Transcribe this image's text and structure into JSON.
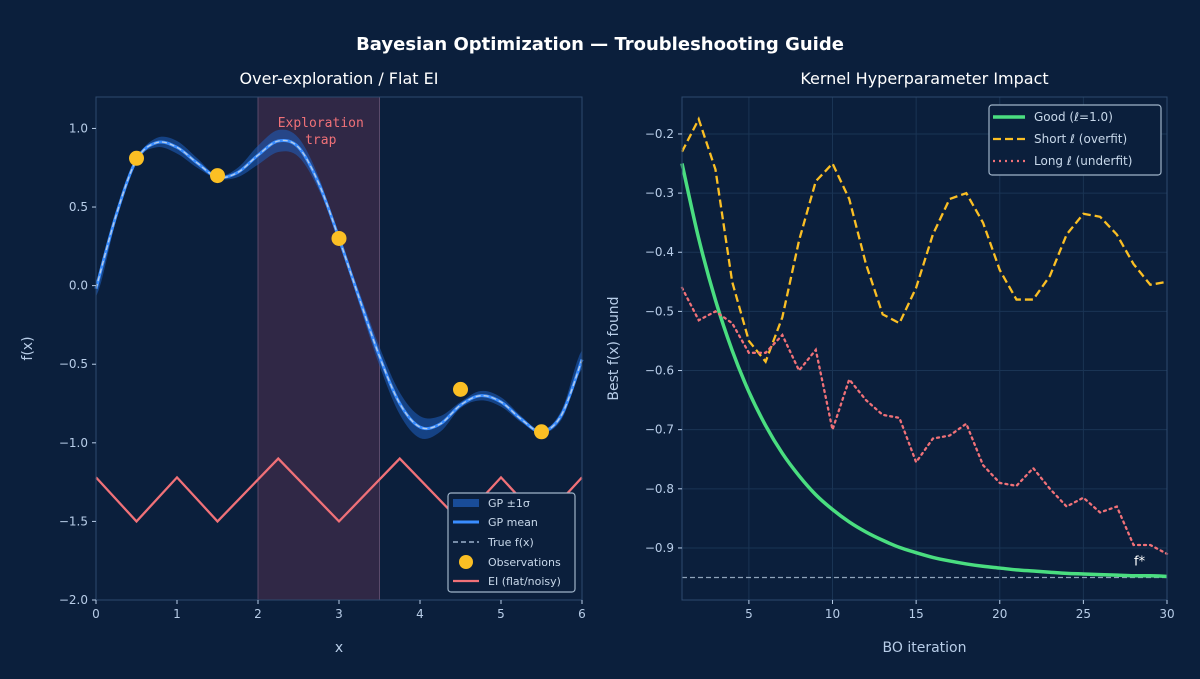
{
  "suptitle": "Bayesian Optimization — Troubleshooting Guide",
  "colors": {
    "background": "#0b1f3c",
    "band": "#1f5fbf",
    "mean": "#3a8dff",
    "true": "#b8cde8",
    "obs": "#fbbf24",
    "ei": "#f07178",
    "good": "#4ade80",
    "short": "#fbbf24",
    "long": "#f07178",
    "trap": "#3a2a48"
  },
  "chart_data": [
    {
      "type": "line",
      "title": "Over-exploration / Flat EI",
      "xlabel": "x",
      "ylabel": "f(x)",
      "xlim": [
        0,
        6
      ],
      "ylim": [
        -2.0,
        1.2
      ],
      "xticks": [
        "0",
        "1",
        "2",
        "3",
        "4",
        "5",
        "6"
      ],
      "yticks": [
        "1.0",
        "0.5",
        "0.0",
        "−0.5",
        "−1.0",
        "−1.5",
        "−2.0"
      ],
      "grid": false,
      "legend_position": "lower-right",
      "annotation": {
        "text_line1": "Exploration",
        "text_line2": "trap",
        "x_range": [
          2.0,
          3.5
        ]
      },
      "x": [
        0,
        0.25,
        0.5,
        0.75,
        1,
        1.25,
        1.5,
        1.75,
        2,
        2.25,
        2.5,
        2.75,
        3,
        3.25,
        3.5,
        3.75,
        4,
        4.25,
        4.5,
        4.75,
        5,
        5.25,
        5.5,
        5.75,
        6
      ],
      "series": [
        {
          "name": "GP ±1σ",
          "kind": "band",
          "sigma": [
            0.05,
            0.03,
            0.01,
            0.03,
            0.04,
            0.03,
            0.01,
            0.03,
            0.06,
            0.07,
            0.06,
            0.04,
            0.01,
            0.04,
            0.06,
            0.07,
            0.07,
            0.05,
            0.02,
            0.03,
            0.03,
            0.02,
            0.01,
            0.03,
            0.06
          ]
        },
        {
          "name": "GP mean",
          "kind": "line",
          "values": [
            -0.02,
            0.45,
            0.8,
            0.91,
            0.88,
            0.78,
            0.69,
            0.72,
            0.83,
            0.92,
            0.88,
            0.65,
            0.3,
            -0.08,
            -0.45,
            -0.75,
            -0.9,
            -0.88,
            -0.76,
            -0.7,
            -0.74,
            -0.85,
            -0.93,
            -0.82,
            -0.47
          ]
        },
        {
          "name": "True f(x)",
          "kind": "dashed",
          "values": [
            -0.02,
            0.45,
            0.8,
            0.91,
            0.88,
            0.78,
            0.69,
            0.72,
            0.83,
            0.92,
            0.88,
            0.65,
            0.3,
            -0.08,
            -0.45,
            -0.75,
            -0.9,
            -0.88,
            -0.76,
            -0.7,
            -0.74,
            -0.85,
            -0.93,
            -0.82,
            -0.47
          ]
        },
        {
          "name": "Observations",
          "kind": "scatter",
          "points": [
            [
              0.5,
              0.81
            ],
            [
              1.5,
              0.7
            ],
            [
              3.0,
              0.3
            ],
            [
              4.5,
              -0.66
            ],
            [
              5.5,
              -0.93
            ]
          ]
        },
        {
          "name": "EI (flat/noisy)",
          "kind": "polyline",
          "points": [
            [
              0,
              -1.22
            ],
            [
              0.5,
              -1.5
            ],
            [
              1,
              -1.22
            ],
            [
              1.5,
              -1.5
            ],
            [
              2.25,
              -1.1
            ],
            [
              3,
              -1.5
            ],
            [
              3.75,
              -1.1
            ],
            [
              4.5,
              -1.5
            ],
            [
              5,
              -1.22
            ],
            [
              5.5,
              -1.5
            ],
            [
              6,
              -1.22
            ]
          ]
        }
      ]
    },
    {
      "type": "line",
      "title": "Kernel Hyperparameter Impact",
      "xlabel": "BO iteration",
      "ylabel": "Best f(x) found",
      "xlim": [
        1,
        30
      ],
      "ylim": [
        -0.988,
        -0.1375
      ],
      "xticks": [
        "5",
        "10",
        "15",
        "20",
        "25",
        "30"
      ],
      "yticks": [
        "−0.2",
        "−0.3",
        "−0.4",
        "−0.5",
        "−0.6",
        "−0.7",
        "−0.8",
        "−0.9"
      ],
      "grid": true,
      "legend_position": "upper-right",
      "reference": {
        "label": "f*",
        "y": -0.95
      },
      "x": [
        1,
        2,
        3,
        4,
        5,
        6,
        7,
        8,
        9,
        10,
        11,
        12,
        13,
        14,
        15,
        16,
        17,
        18,
        19,
        20,
        21,
        22,
        23,
        24,
        25,
        26,
        27,
        28,
        29,
        30
      ],
      "series": [
        {
          "name": "Good (ℓ=1.0)",
          "style": "solid",
          "values": [
            -0.25,
            -0.377,
            -0.481,
            -0.566,
            -0.636,
            -0.693,
            -0.74,
            -0.778,
            -0.81,
            -0.835,
            -0.856,
            -0.873,
            -0.887,
            -0.899,
            -0.908,
            -0.916,
            -0.922,
            -0.927,
            -0.931,
            -0.934,
            -0.937,
            -0.939,
            -0.941,
            -0.943,
            -0.944,
            -0.945,
            -0.946,
            -0.947,
            -0.947,
            -0.948
          ]
        },
        {
          "name": "Short ℓ (overfit)",
          "style": "dashed",
          "values": [
            -0.23,
            -0.175,
            -0.26,
            -0.45,
            -0.55,
            -0.585,
            -0.51,
            -0.38,
            -0.28,
            -0.25,
            -0.31,
            -0.42,
            -0.505,
            -0.52,
            -0.46,
            -0.37,
            -0.31,
            -0.3,
            -0.35,
            -0.43,
            -0.48,
            -0.48,
            -0.44,
            -0.37,
            -0.335,
            -0.34,
            -0.37,
            -0.42,
            -0.455,
            -0.45
          ]
        },
        {
          "name": "Long ℓ (underfit)",
          "style": "dotted",
          "values": [
            -0.46,
            -0.515,
            -0.5,
            -0.52,
            -0.57,
            -0.57,
            -0.54,
            -0.6,
            -0.565,
            -0.7,
            -0.615,
            -0.65,
            -0.675,
            -0.68,
            -0.755,
            -0.715,
            -0.71,
            -0.69,
            -0.76,
            -0.79,
            -0.795,
            -0.765,
            -0.8,
            -0.83,
            -0.815,
            -0.84,
            -0.83,
            -0.895,
            -0.895,
            -0.91
          ]
        }
      ]
    }
  ]
}
